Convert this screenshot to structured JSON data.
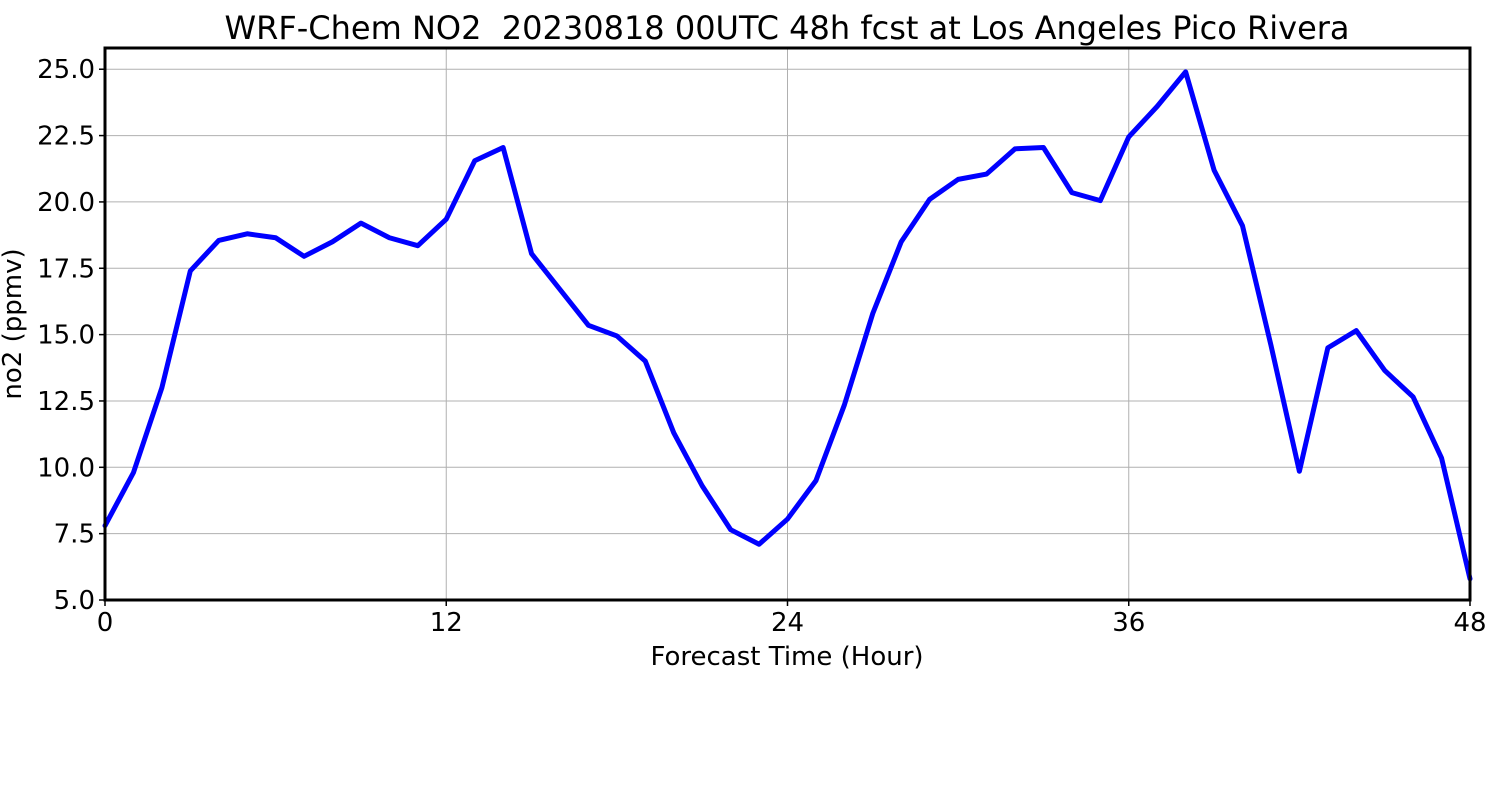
{
  "chart_data": {
    "type": "line",
    "title": "WRF-Chem NO2  20230818 00UTC 48h fcst at Los Angeles Pico Rivera",
    "xlabel": "Forecast Time (Hour)",
    "ylabel": "no2  (ppmv)",
    "xlim": [
      0,
      48
    ],
    "ylim": [
      5.0,
      25.8
    ],
    "xticks": [
      0,
      12,
      24,
      36,
      48
    ],
    "xtick_labels": [
      "0",
      "12",
      "24",
      "36",
      "48"
    ],
    "yticks": [
      5.0,
      7.5,
      10.0,
      12.5,
      15.0,
      17.5,
      20.0,
      22.5,
      25.0
    ],
    "ytick_labels": [
      "5.0",
      "7.5",
      "10.0",
      "12.5",
      "15.0",
      "17.5",
      "20.0",
      "22.5",
      "25.0"
    ],
    "grid": true,
    "series": [
      {
        "color": "#0000ff",
        "x": [
          0,
          1,
          2,
          3,
          4,
          5,
          6,
          7,
          8,
          9,
          10,
          11,
          12,
          13,
          14,
          15,
          16,
          17,
          18,
          19,
          20,
          21,
          22,
          23,
          24,
          25,
          26,
          27,
          28,
          29,
          30,
          31,
          32,
          33,
          34,
          35,
          36,
          37,
          38,
          39,
          40,
          41,
          42,
          43,
          44,
          45,
          46,
          47,
          48
        ],
        "values": [
          7.8,
          9.8,
          13.0,
          17.4,
          18.55,
          18.8,
          18.65,
          17.95,
          18.5,
          19.2,
          18.65,
          18.35,
          19.35,
          21.55,
          22.05,
          18.05,
          16.7,
          15.35,
          14.95,
          14.0,
          11.3,
          9.3,
          7.65,
          7.1,
          8.05,
          9.5,
          12.35,
          15.8,
          18.5,
          20.1,
          20.85,
          21.05,
          22.0,
          22.05,
          20.35,
          20.05,
          22.45,
          23.6,
          24.9,
          21.2,
          19.1,
          14.6,
          9.85,
          14.5,
          15.15,
          13.65,
          12.65,
          10.35,
          5.8
        ]
      }
    ]
  }
}
